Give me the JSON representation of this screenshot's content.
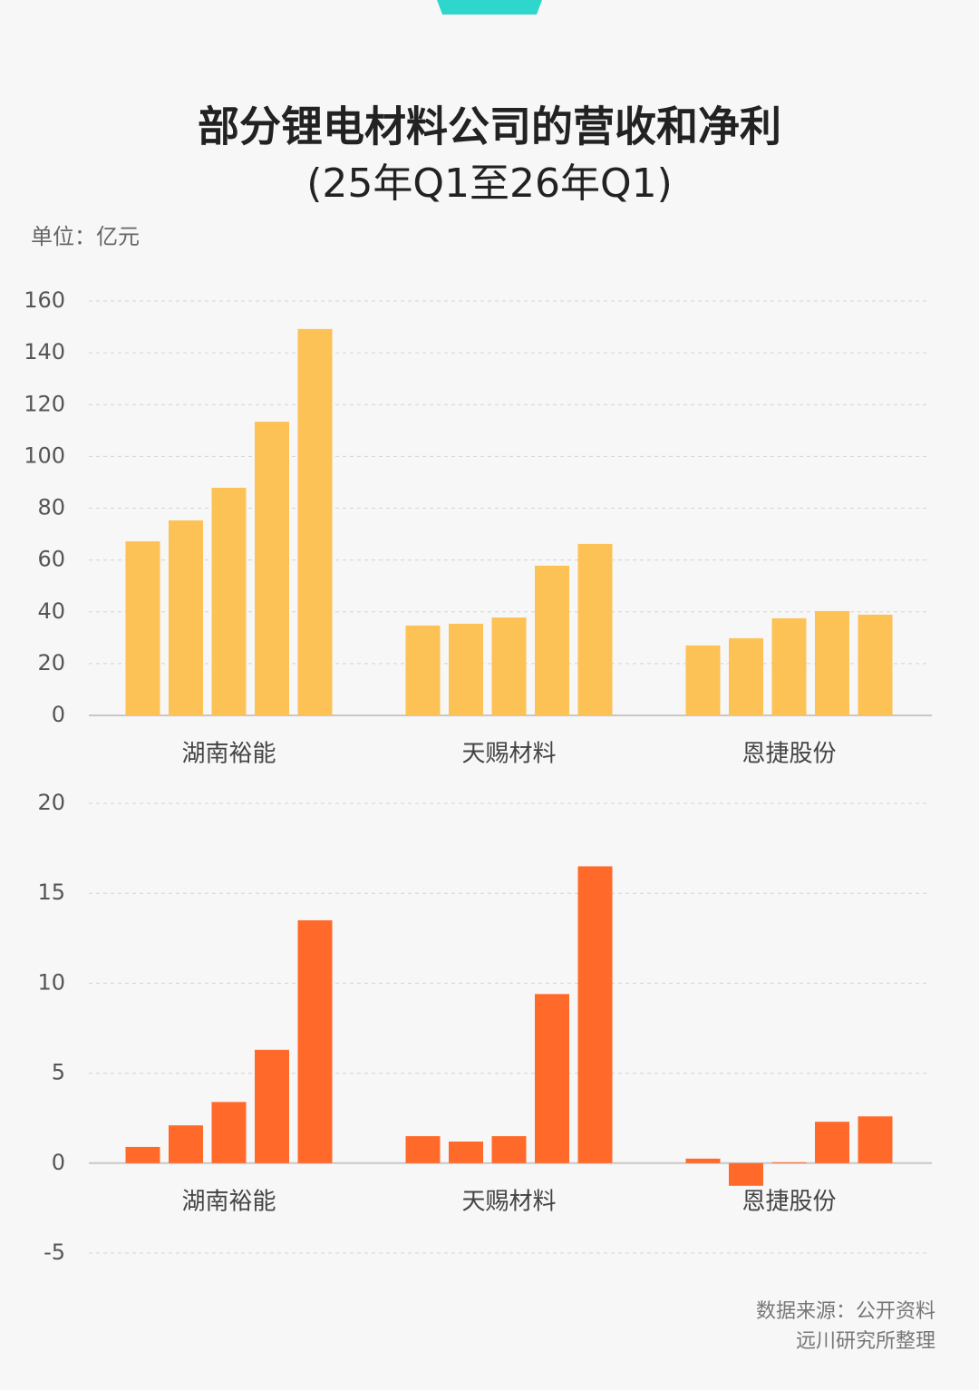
{
  "header": {
    "title": "部分锂电材料公司的营收和净利",
    "subtitle": "(25年Q1至26年Q1)",
    "unit": "单位：亿元"
  },
  "footer": {
    "source": "数据来源：公开资料",
    "credit": "远川研究所整理"
  },
  "chart_data": [
    {
      "type": "bar",
      "categories": [
        "湖南裕能",
        "天赐材料",
        "恩捷股份"
      ],
      "series": [
        {
          "color": "#fdc255",
          "values": [
            67.2,
            34.7,
            27
          ]
        },
        {
          "color": "#fdc255",
          "values": [
            75.3,
            35.4,
            29.8
          ]
        },
        {
          "color": "#fdc255",
          "values": [
            87.9,
            37.8,
            37.5
          ]
        },
        {
          "color": "#fdc255",
          "values": [
            113.4,
            57.8,
            40.3
          ]
        },
        {
          "color": "#fdc255",
          "values": [
            149.2,
            66.2,
            38.9
          ]
        }
      ],
      "ylim": [
        0,
        160
      ],
      "yticks": [
        0,
        20,
        40,
        60,
        80,
        100,
        120,
        140,
        160
      ],
      "grid": true
    },
    {
      "type": "bar",
      "categories": [
        "湖南裕能",
        "天赐材料",
        "恩捷股份"
      ],
      "series": [
        {
          "color": "#ff6a2b",
          "values": [
            0.9,
            1.5,
            0.25
          ]
        },
        {
          "color": "#ff6a2b",
          "values": [
            2.1,
            1.2,
            -1.26
          ]
        },
        {
          "color": "#ff6a2b",
          "values": [
            3.4,
            1.5,
            0.05
          ]
        },
        {
          "color": "#ff6a2b",
          "values": [
            6.3,
            9.4,
            2.3
          ]
        },
        {
          "color": "#ff6a2b",
          "values": [
            13.5,
            16.5,
            2.6
          ]
        }
      ],
      "ylim": [
        -5,
        20
      ],
      "yticks": [
        -5,
        0,
        5,
        10,
        15,
        20
      ],
      "grid": true
    }
  ]
}
